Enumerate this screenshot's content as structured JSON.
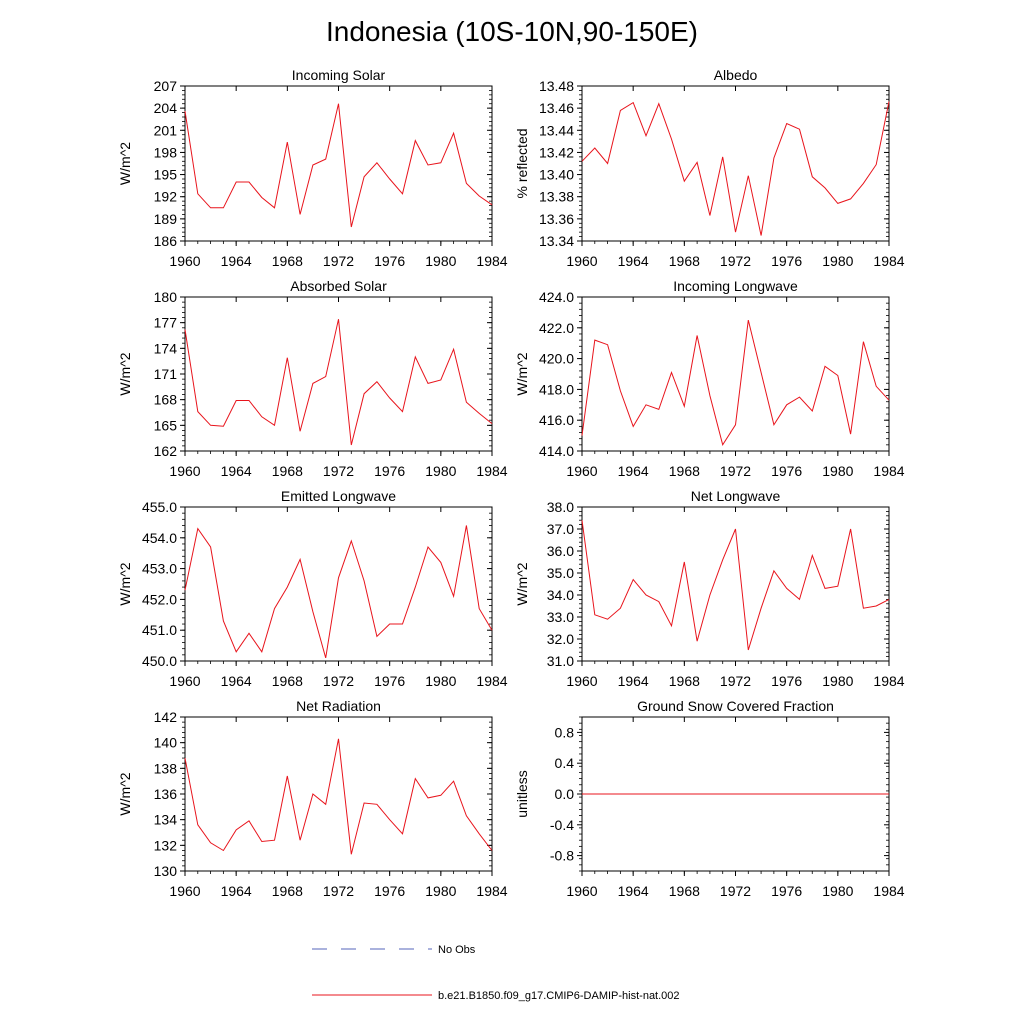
{
  "title": "Indonesia (10S-10N,90-150E)",
  "line_color": "#e8141c",
  "noobs_color": "#5566bb",
  "legend": {
    "no_obs": "No Obs",
    "model": "b.e21.B1850.f09_g17.CMIP6-DAMIP-hist-nat.002"
  },
  "chart_data": [
    {
      "type": "line",
      "title": "Incoming Solar",
      "ylabel": "W/m^2",
      "xlim": [
        1960,
        1984
      ],
      "ylim": [
        186,
        207
      ],
      "yticks": [
        "186",
        "189",
        "192",
        "195",
        "198",
        "201",
        "204",
        "207"
      ],
      "xticks": [
        "1960",
        "1964",
        "1968",
        "1972",
        "1976",
        "1980",
        "1984"
      ],
      "x": [
        1960,
        1961,
        1962,
        1963,
        1964,
        1965,
        1966,
        1967,
        1968,
        1969,
        1970,
        1971,
        1972,
        1973,
        1974,
        1975,
        1976,
        1977,
        1978,
        1979,
        1980,
        1981,
        1982,
        1983,
        1984
      ],
      "series": [
        {
          "values": [
            203.6,
            192.4,
            190.5,
            190.5,
            194.0,
            194.0,
            191.9,
            190.5,
            199.4,
            189.6,
            196.3,
            197.1,
            204.6,
            187.9,
            194.7,
            196.6,
            194.4,
            192.4,
            199.6,
            196.3,
            196.6,
            200.6,
            193.8,
            192.1,
            190.9
          ]
        }
      ]
    },
    {
      "type": "line",
      "title": "Albedo",
      "ylabel": "% reflected",
      "xlim": [
        1960,
        1984
      ],
      "ylim": [
        13.34,
        13.48
      ],
      "yticks": [
        "13.34",
        "13.36",
        "13.38",
        "13.40",
        "13.42",
        "13.44",
        "13.46",
        "13.48"
      ],
      "xticks": [
        "1960",
        "1964",
        "1968",
        "1972",
        "1976",
        "1980",
        "1984"
      ],
      "x": [
        1960,
        1961,
        1962,
        1963,
        1964,
        1965,
        1966,
        1967,
        1968,
        1969,
        1970,
        1971,
        1972,
        1973,
        1974,
        1975,
        1976,
        1977,
        1978,
        1979,
        1980,
        1981,
        1982,
        1983,
        1984
      ],
      "series": [
        {
          "values": [
            13.412,
            13.424,
            13.41,
            13.458,
            13.465,
            13.435,
            13.464,
            13.432,
            13.394,
            13.411,
            13.363,
            13.416,
            13.348,
            13.399,
            13.345,
            13.415,
            13.446,
            13.441,
            13.398,
            13.388,
            13.374,
            13.378,
            13.392,
            13.409,
            13.466
          ]
        }
      ]
    },
    {
      "type": "line",
      "title": "Absorbed Solar",
      "ylabel": "W/m^2",
      "xlim": [
        1960,
        1984
      ],
      "ylim": [
        162,
        180
      ],
      "yticks": [
        "162",
        "165",
        "168",
        "171",
        "174",
        "177",
        "180"
      ],
      "xticks": [
        "1960",
        "1964",
        "1968",
        "1972",
        "1976",
        "1980",
        "1984"
      ],
      "x": [
        1960,
        1961,
        1962,
        1963,
        1964,
        1965,
        1966,
        1967,
        1968,
        1969,
        1970,
        1971,
        1972,
        1973,
        1974,
        1975,
        1976,
        1977,
        1978,
        1979,
        1980,
        1981,
        1982,
        1983,
        1984
      ],
      "series": [
        {
          "values": [
            176.2,
            166.6,
            165.0,
            164.9,
            167.9,
            167.9,
            166.0,
            165.0,
            172.9,
            164.3,
            169.9,
            170.7,
            177.4,
            162.7,
            168.7,
            170.1,
            168.2,
            166.6,
            173.0,
            169.9,
            170.3,
            173.9,
            167.7,
            166.4,
            165.2
          ]
        }
      ]
    },
    {
      "type": "line",
      "title": "Incoming Longwave",
      "ylabel": "W/m^2",
      "xlim": [
        1960,
        1984
      ],
      "ylim": [
        414.0,
        424.0
      ],
      "yticks": [
        "414.0",
        "416.0",
        "418.0",
        "420.0",
        "422.0",
        "424.0"
      ],
      "xticks": [
        "1960",
        "1964",
        "1968",
        "1972",
        "1976",
        "1980",
        "1984"
      ],
      "x": [
        1960,
        1961,
        1962,
        1963,
        1964,
        1965,
        1966,
        1967,
        1968,
        1969,
        1970,
        1971,
        1972,
        1973,
        1974,
        1975,
        1976,
        1977,
        1978,
        1979,
        1980,
        1981,
        1982,
        1983,
        1984
      ],
      "series": [
        {
          "values": [
            415.0,
            421.2,
            420.9,
            417.9,
            415.6,
            417.0,
            416.7,
            419.1,
            416.9,
            421.5,
            417.6,
            414.4,
            415.7,
            422.5,
            419.1,
            415.7,
            417.0,
            417.5,
            416.6,
            419.5,
            418.9,
            415.1,
            421.1,
            418.2,
            417.3
          ]
        }
      ]
    },
    {
      "type": "line",
      "title": "Emitted Longwave",
      "ylabel": "W/m^2",
      "xlim": [
        1960,
        1984
      ],
      "ylim": [
        450.0,
        455.0
      ],
      "yticks": [
        "450.0",
        "451.0",
        "452.0",
        "453.0",
        "454.0",
        "455.0"
      ],
      "xticks": [
        "1960",
        "1964",
        "1968",
        "1972",
        "1976",
        "1980",
        "1984"
      ],
      "x": [
        1960,
        1961,
        1962,
        1963,
        1964,
        1965,
        1966,
        1967,
        1968,
        1969,
        1970,
        1971,
        1972,
        1973,
        1974,
        1975,
        1976,
        1977,
        1978,
        1979,
        1980,
        1981,
        1982,
        1983,
        1984
      ],
      "series": [
        {
          "values": [
            452.3,
            454.3,
            453.7,
            451.3,
            450.3,
            450.9,
            450.3,
            451.7,
            452.4,
            453.3,
            451.6,
            450.1,
            452.7,
            453.9,
            452.6,
            450.8,
            451.2,
            451.2,
            452.4,
            453.7,
            453.2,
            452.1,
            454.4,
            451.7,
            451.0
          ]
        }
      ]
    },
    {
      "type": "line",
      "title": "Net Longwave",
      "ylabel": "W/m^2",
      "xlim": [
        1960,
        1984
      ],
      "ylim": [
        31.0,
        38.0
      ],
      "yticks": [
        "31.0",
        "32.0",
        "33.0",
        "34.0",
        "35.0",
        "36.0",
        "37.0",
        "38.0"
      ],
      "xticks": [
        "1960",
        "1964",
        "1968",
        "1972",
        "1976",
        "1980",
        "1984"
      ],
      "x": [
        1960,
        1961,
        1962,
        1963,
        1964,
        1965,
        1966,
        1967,
        1968,
        1969,
        1970,
        1971,
        1972,
        1973,
        1974,
        1975,
        1976,
        1977,
        1978,
        1979,
        1980,
        1981,
        1982,
        1983,
        1984
      ],
      "series": [
        {
          "values": [
            37.4,
            33.1,
            32.9,
            33.4,
            34.7,
            34.0,
            33.7,
            32.6,
            35.5,
            31.9,
            34.0,
            35.6,
            37.0,
            31.5,
            33.4,
            35.1,
            34.3,
            33.8,
            35.8,
            34.3,
            34.4,
            37.0,
            33.4,
            33.5,
            33.8
          ]
        }
      ]
    },
    {
      "type": "line",
      "title": "Net Radiation",
      "ylabel": "W/m^2",
      "xlim": [
        1960,
        1984
      ],
      "ylim": [
        130,
        142
      ],
      "yticks": [
        "130",
        "132",
        "134",
        "136",
        "138",
        "140",
        "142"
      ],
      "xticks": [
        "1960",
        "1964",
        "1968",
        "1972",
        "1976",
        "1980",
        "1984"
      ],
      "x": [
        1960,
        1961,
        1962,
        1963,
        1964,
        1965,
        1966,
        1967,
        1968,
        1969,
        1970,
        1971,
        1972,
        1973,
        1974,
        1975,
        1976,
        1977,
        1978,
        1979,
        1980,
        1981,
        1982,
        1983,
        1984
      ],
      "series": [
        {
          "values": [
            138.8,
            133.6,
            132.2,
            131.6,
            133.2,
            133.9,
            132.3,
            132.4,
            137.4,
            132.4,
            136.0,
            135.2,
            140.3,
            131.3,
            135.3,
            135.2,
            134.0,
            132.9,
            137.2,
            135.7,
            135.9,
            137.0,
            134.3,
            132.9,
            131.6
          ]
        }
      ]
    },
    {
      "type": "line",
      "title": "Ground Snow Covered Fraction",
      "ylabel": "unitless",
      "xlim": [
        1960,
        1984
      ],
      "ylim": [
        -1.0,
        1.0
      ],
      "yticks": [
        "-0.8",
        "-0.4",
        "0.0",
        "0.4",
        "0.8"
      ],
      "xticks": [
        "1960",
        "1964",
        "1968",
        "1972",
        "1976",
        "1980",
        "1984"
      ],
      "x": [
        1960,
        1961,
        1962,
        1963,
        1964,
        1965,
        1966,
        1967,
        1968,
        1969,
        1970,
        1971,
        1972,
        1973,
        1974,
        1975,
        1976,
        1977,
        1978,
        1979,
        1980,
        1981,
        1982,
        1983,
        1984
      ],
      "series": [
        {
          "values": [
            0,
            0,
            0,
            0,
            0,
            0,
            0,
            0,
            0,
            0,
            0,
            0,
            0,
            0,
            0,
            0,
            0,
            0,
            0,
            0,
            0,
            0,
            0,
            0,
            0
          ]
        }
      ]
    }
  ]
}
